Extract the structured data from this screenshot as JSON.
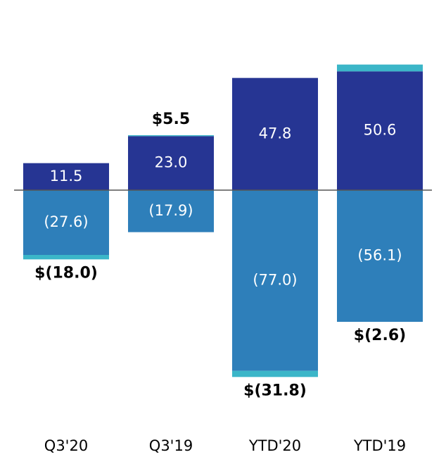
{
  "chart_data": {
    "type": "bar",
    "categories": [
      "Q3'20",
      "Q3'19",
      "YTD'20",
      "YTD'19"
    ],
    "series": [
      {
        "color": "#263593",
        "values": [
          11.5,
          23.0,
          47.8,
          50.6
        ],
        "value_labels": [
          "11.5",
          "23.0",
          "47.8",
          "50.6"
        ]
      },
      {
        "color": "#2e7fba",
        "values": [
          -27.6,
          -17.9,
          -77.0,
          -56.1
        ],
        "value_labels": [
          "(27.6)",
          "(17.9)",
          "(77.0)",
          "(56.1)"
        ]
      },
      {
        "color": "#3bb6c8",
        "values": [
          -1.9,
          0.4,
          -2.6,
          2.9
        ]
      }
    ],
    "totals": [
      -18.0,
      5.5,
      -31.8,
      -2.6
    ],
    "total_labels": [
      "$(18.0)",
      "$5.5",
      "$(31.8)",
      "$(2.6)"
    ],
    "ylim": [
      -87,
      66
    ]
  }
}
